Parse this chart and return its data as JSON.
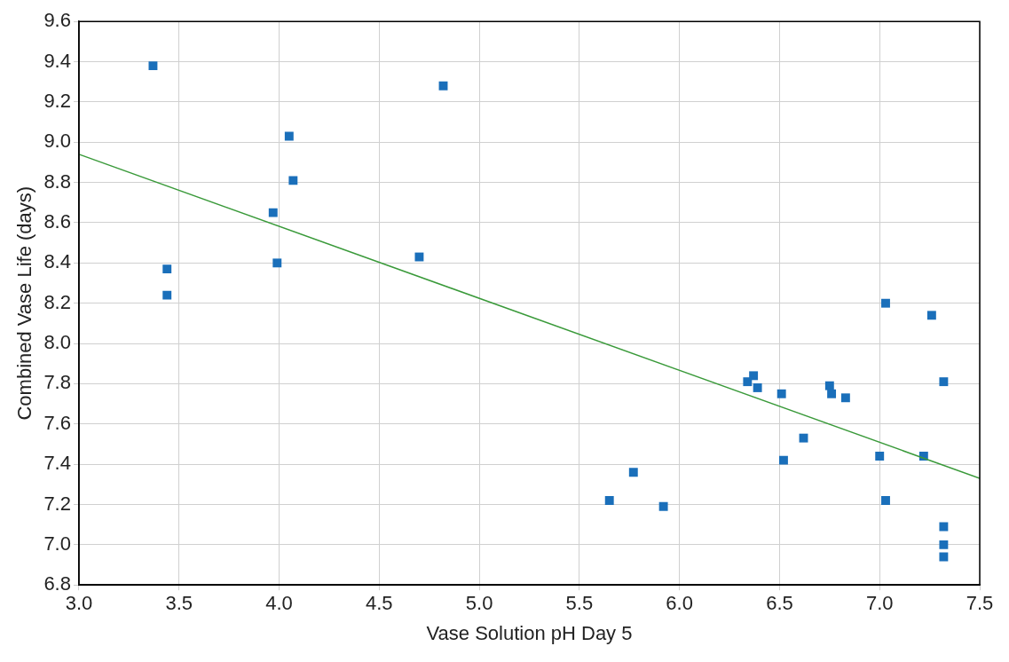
{
  "chart_data": {
    "type": "scatter",
    "xlabel": "Vase Solution pH Day 5",
    "ylabel": "Combined Vase Life (days)",
    "xlim": [
      3,
      7.5
    ],
    "ylim": [
      6.8,
      9.6
    ],
    "xticks": [
      {
        "value": 3,
        "label": "3.0"
      },
      {
        "value": 3.5,
        "label": "3.5"
      },
      {
        "value": 4,
        "label": "4.0"
      },
      {
        "value": 4.5,
        "label": "4.5"
      },
      {
        "value": 5,
        "label": "5.0"
      },
      {
        "value": 5.5,
        "label": "5.5"
      },
      {
        "value": 6,
        "label": "6.0"
      },
      {
        "value": 6.5,
        "label": "6.5"
      },
      {
        "value": 7,
        "label": "7.0"
      },
      {
        "value": 7.5,
        "label": "7.5"
      }
    ],
    "yticks": [
      {
        "value": 6.8,
        "label": "6.8"
      },
      {
        "value": 7,
        "label": "7.0"
      },
      {
        "value": 7.2,
        "label": "7.2"
      },
      {
        "value": 7.4,
        "label": "7.4"
      },
      {
        "value": 7.6,
        "label": "7.6"
      },
      {
        "value": 7.8,
        "label": "7.8"
      },
      {
        "value": 8,
        "label": "8.0"
      },
      {
        "value": 8.2,
        "label": "8.2"
      },
      {
        "value": 8.4,
        "label": "8.4"
      },
      {
        "value": 8.6,
        "label": "8.6"
      },
      {
        "value": 8.8,
        "label": "8.8"
      },
      {
        "value": 9,
        "label": "9.0"
      },
      {
        "value": 9.2,
        "label": "9.2"
      },
      {
        "value": 9.4,
        "label": "9.4"
      },
      {
        "value": 9.6,
        "label": "9.6"
      }
    ],
    "grid": true,
    "marker": "square",
    "series": [
      {
        "type": "line",
        "marker": "none",
        "color": "#3a9a3a",
        "x": [
          3,
          7.5
        ],
        "values": [
          8.94,
          7.33
        ]
      },
      {
        "color": "#1a6fba",
        "x": [
          3.37,
          3.44,
          3.44,
          3.97,
          3.99,
          4.05,
          4.07,
          4.7,
          4.82,
          5.65,
          5.77,
          5.92,
          6.34,
          6.37,
          6.39,
          6.51,
          6.52,
          6.62,
          6.75,
          6.76,
          6.83,
          7.0,
          7.03,
          7.03,
          7.22,
          7.26,
          7.32,
          7.32,
          7.32,
          7.32
        ],
        "values": [
          9.38,
          8.37,
          8.24,
          8.65,
          8.4,
          9.03,
          8.81,
          8.43,
          9.28,
          7.22,
          7.36,
          7.19,
          7.81,
          7.84,
          7.78,
          7.75,
          7.42,
          7.53,
          7.79,
          7.75,
          7.73,
          7.44,
          8.2,
          7.22,
          7.44,
          8.14,
          7.81,
          7.09,
          7.0,
          6.94
        ]
      }
    ]
  }
}
